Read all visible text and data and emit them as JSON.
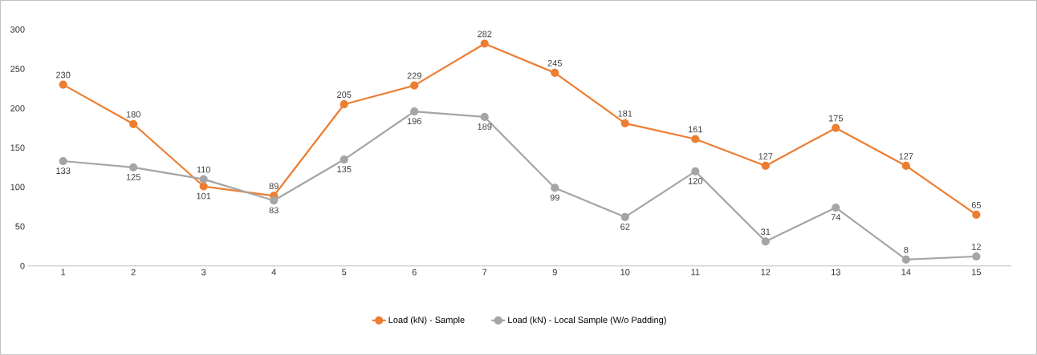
{
  "chart_data": {
    "type": "line",
    "categories": [
      "1",
      "2",
      "3",
      "4",
      "5",
      "6",
      "7",
      "9",
      "10",
      "11",
      "12",
      "13",
      "14",
      "15"
    ],
    "series": [
      {
        "name": "Load (kN) - Sample",
        "color": "#ed7d31",
        "values": [
          230,
          180,
          101,
          89,
          205,
          229,
          282,
          245,
          181,
          161,
          127,
          175,
          127,
          65
        ]
      },
      {
        "name": "Load (kN) - Local Sample (W/o Padding)",
        "color": "#a5a5a5",
        "values": [
          133,
          125,
          110,
          83,
          135,
          196,
          189,
          99,
          62,
          120,
          31,
          74,
          8,
          12
        ]
      }
    ],
    "ylim": [
      0,
      300
    ],
    "yticks": [
      0,
      50,
      100,
      150,
      200,
      250,
      300
    ],
    "data_labels": true,
    "legend": "bottom",
    "marker": "circle",
    "line_style": "solid",
    "grid": false
  }
}
